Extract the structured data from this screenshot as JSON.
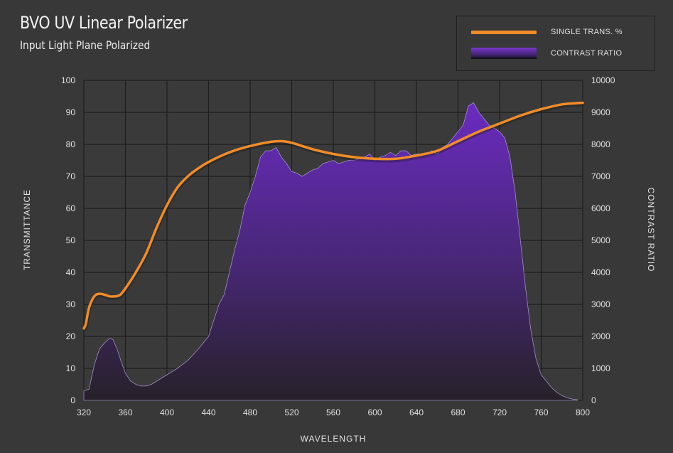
{
  "colors": {
    "background": "#383838",
    "grid": "#1e1e1e",
    "transmission_line": "#f28c28",
    "contrast_fill_top": "#6a2bc0",
    "contrast_fill_bottom": "#272129"
  },
  "chart_data": {
    "type": "line",
    "title": "BVO UV Linear Polarizer",
    "subtitle": "Input Light Plane Polarized",
    "xlabel": "WAVELENGTH",
    "ylabel": "TRANSMITTANCE",
    "y2label": "CONTRAST RATIO",
    "xlim": [
      320,
      800
    ],
    "ylim": [
      0,
      100
    ],
    "y2lim": [
      0,
      10000
    ],
    "x_ticks": [
      320,
      360,
      400,
      440,
      480,
      520,
      560,
      600,
      640,
      680,
      720,
      760,
      800
    ],
    "y_ticks": [
      0,
      10,
      20,
      30,
      40,
      50,
      60,
      70,
      80,
      90,
      100
    ],
    "y2_ticks": [
      0,
      1000,
      2000,
      3000,
      4000,
      5000,
      6000,
      7000,
      8000,
      9000,
      10000
    ],
    "grid": true,
    "legend": "top-right",
    "series": [
      {
        "name": "SINGLE TRANS. %",
        "type": "line",
        "axis": "left",
        "x": [
          320,
          322,
          325,
          330,
          335,
          340,
          345,
          350,
          355,
          360,
          370,
          380,
          390,
          400,
          410,
          420,
          430,
          440,
          460,
          480,
          500,
          510,
          520,
          540,
          560,
          580,
          600,
          620,
          640,
          660,
          680,
          700,
          720,
          740,
          760,
          780,
          800
        ],
        "values": [
          22.5,
          24,
          29,
          32.5,
          33.3,
          33,
          32.5,
          32.5,
          33,
          35,
          40,
          46,
          54,
          61,
          66.5,
          70,
          72.5,
          74.5,
          77.5,
          79.5,
          80.8,
          81,
          80.5,
          78.5,
          77,
          76,
          75.5,
          75.5,
          76.5,
          78,
          81,
          84,
          86.5,
          89,
          91,
          92.5,
          93
        ]
      },
      {
        "name": "CONTRAST RATIO",
        "type": "area",
        "axis": "right",
        "x": [
          320,
          325,
          328,
          330,
          335,
          340,
          345,
          348,
          352,
          356,
          360,
          365,
          370,
          375,
          380,
          385,
          390,
          395,
          400,
          410,
          420,
          430,
          435,
          440,
          445,
          450,
          455,
          460,
          465,
          470,
          475,
          480,
          485,
          490,
          495,
          500,
          505,
          510,
          515,
          520,
          525,
          530,
          535,
          540,
          545,
          550,
          555,
          560,
          565,
          570,
          575,
          580,
          585,
          590,
          595,
          600,
          605,
          610,
          615,
          620,
          625,
          630,
          635,
          640,
          645,
          650,
          655,
          660,
          665,
          670,
          675,
          680,
          685,
          690,
          695,
          700,
          705,
          710,
          715,
          720,
          725,
          730,
          735,
          740,
          745,
          750,
          755,
          760,
          765,
          770,
          775,
          780,
          785,
          790,
          795
        ],
        "values": [
          300,
          350,
          800,
          1100,
          1600,
          1800,
          1950,
          1900,
          1600,
          1200,
          850,
          600,
          500,
          450,
          450,
          500,
          600,
          700,
          800,
          1000,
          1250,
          1600,
          1800,
          2000,
          2500,
          3000,
          3300,
          4000,
          4700,
          5300,
          6100,
          6500,
          7000,
          7600,
          7800,
          7800,
          7900,
          7600,
          7400,
          7150,
          7100,
          7000,
          7100,
          7200,
          7250,
          7400,
          7450,
          7500,
          7400,
          7450,
          7500,
          7500,
          7550,
          7600,
          7700,
          7500,
          7600,
          7650,
          7750,
          7650,
          7800,
          7800,
          7650,
          7700,
          7700,
          7700,
          7800,
          7700,
          7900,
          8000,
          8200,
          8400,
          8600,
          9200,
          9300,
          9000,
          8800,
          8600,
          8500,
          8400,
          8200,
          7600,
          6500,
          5000,
          3500,
          2200,
          1300,
          800,
          600,
          400,
          250,
          150,
          80,
          40,
          20
        ]
      }
    ]
  }
}
